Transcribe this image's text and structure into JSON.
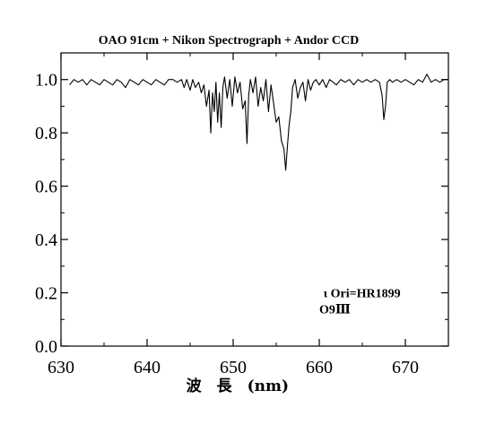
{
  "chart_data": {
    "type": "line",
    "title": "OAO 91cm + Nikon Spectrograph + Andor CCD",
    "xlabel": "波　長　(nm)",
    "ylabel": "",
    "xlim": [
      630,
      675
    ],
    "ylim": [
      0.0,
      1.1
    ],
    "xticks": [
      630,
      640,
      650,
      660,
      670
    ],
    "yticks": [
      0.0,
      0.2,
      0.4,
      0.6,
      0.8,
      1.0
    ],
    "xtick_labels": [
      "630",
      "640",
      "650",
      "660",
      "670"
    ],
    "ytick_labels": [
      "0.0",
      "0.2",
      "0.4",
      "0.6",
      "0.8",
      "1.0"
    ],
    "grid": false,
    "annotations": [
      {
        "text": "ι Ori=HR1899",
        "x": 660.5,
        "y": 0.2
      },
      {
        "text": "O9Ⅲ",
        "x": 660.0,
        "y": 0.14
      }
    ],
    "series": [
      {
        "x": [
          631.0,
          631.5,
          632.0,
          632.5,
          633.0,
          633.5,
          634.0,
          634.5,
          635.0,
          635.5,
          636.0,
          636.5,
          637.0,
          637.5,
          638.0,
          638.5,
          639.0,
          639.5,
          640.0,
          640.5,
          641.0,
          641.5,
          642.0,
          642.5,
          643.0,
          643.5,
          644.0,
          644.3,
          644.6,
          645.0,
          645.3,
          645.6,
          646.0,
          646.3,
          646.6,
          646.9,
          647.2,
          647.4,
          647.6,
          647.8,
          648.0,
          648.2,
          648.4,
          648.6,
          648.8,
          649.0,
          649.3,
          649.6,
          649.9,
          650.2,
          650.5,
          650.8,
          651.1,
          651.4,
          651.6,
          651.8,
          652.0,
          652.3,
          652.6,
          652.9,
          653.2,
          653.5,
          653.8,
          654.1,
          654.4,
          654.7,
          655.0,
          655.3,
          655.6,
          655.9,
          656.1,
          656.3,
          656.5,
          656.7,
          656.9,
          657.2,
          657.5,
          657.8,
          658.1,
          658.4,
          658.7,
          659.0,
          659.3,
          659.6,
          660.0,
          660.4,
          660.8,
          661.2,
          661.6,
          662.0,
          662.5,
          663.0,
          663.5,
          664.0,
          664.5,
          665.0,
          665.5,
          666.0,
          666.5,
          667.0,
          667.3,
          667.5,
          667.7,
          667.9,
          668.2,
          668.5,
          669.0,
          669.5,
          670.0,
          670.5,
          671.0,
          671.5,
          672.0,
          672.5,
          673.0,
          673.5,
          674.0,
          674.5,
          675.0
        ],
        "values": [
          0.98,
          1.0,
          0.99,
          1.0,
          0.98,
          1.0,
          0.99,
          0.98,
          1.0,
          0.99,
          0.98,
          1.0,
          0.99,
          0.97,
          1.0,
          0.99,
          0.98,
          1.0,
          0.99,
          0.98,
          1.0,
          0.99,
          0.98,
          1.0,
          1.0,
          0.99,
          1.0,
          0.97,
          1.0,
          0.96,
          1.0,
          0.97,
          0.99,
          0.95,
          0.98,
          0.9,
          0.96,
          0.8,
          0.95,
          0.88,
          0.99,
          0.84,
          0.95,
          0.82,
          0.97,
          1.01,
          0.93,
          1.0,
          0.9,
          1.01,
          0.95,
          0.99,
          0.89,
          0.92,
          0.76,
          0.94,
          1.0,
          0.95,
          1.01,
          0.9,
          0.97,
          0.92,
          1.0,
          0.88,
          0.98,
          0.91,
          0.84,
          0.86,
          0.77,
          0.74,
          0.66,
          0.75,
          0.83,
          0.88,
          0.97,
          1.0,
          0.93,
          0.97,
          0.99,
          0.92,
          1.0,
          0.96,
          0.99,
          1.0,
          0.98,
          1.0,
          0.97,
          1.0,
          0.99,
          0.98,
          1.0,
          0.99,
          1.0,
          0.98,
          1.0,
          0.99,
          1.0,
          0.99,
          1.0,
          0.99,
          0.94,
          0.85,
          0.9,
          0.99,
          1.0,
          0.99,
          1.0,
          0.99,
          1.0,
          0.99,
          0.98,
          1.0,
          0.99,
          1.02,
          0.99,
          1.0,
          0.99,
          1.0,
          1.0
        ]
      }
    ]
  }
}
